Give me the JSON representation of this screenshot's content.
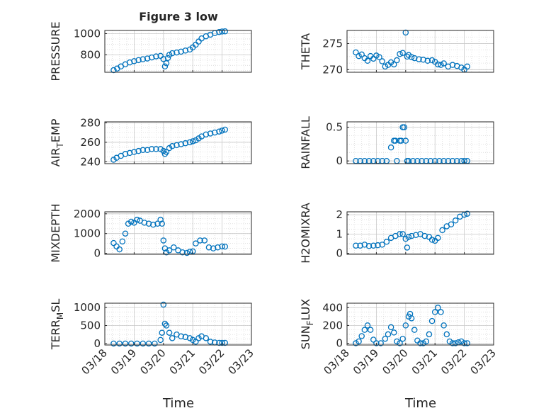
{
  "figure": {
    "title": "Figure 3 low",
    "xlabel": "Time",
    "x_tick_labels": [
      "03/18",
      "03/19",
      "03/20",
      "03/21",
      "03/22",
      "03/23"
    ]
  },
  "colors": {
    "marker": "#0072BD",
    "axis": "#262626",
    "grid": "#d9d9d9"
  },
  "chart_data": [
    {
      "type": "scatter",
      "panel": "PRESSURE",
      "ylabel": "PRESSURE",
      "xlim": [
        "03/18",
        "03/23"
      ],
      "ylim": [
        635,
        1030
      ],
      "yticks": [
        800,
        1000
      ],
      "ytick_labels": [
        "800",
        "1000"
      ],
      "x": [
        0.3,
        0.42,
        0.55,
        0.7,
        0.85,
        1.0,
        1.15,
        1.3,
        1.45,
        1.6,
        1.75,
        1.9,
        2.0,
        2.05,
        2.1,
        2.15,
        2.2,
        2.3,
        2.45,
        2.6,
        2.75,
        2.9,
        3.0,
        3.1,
        3.2,
        3.3,
        3.45,
        3.6,
        3.75,
        3.9,
        4.0,
        4.1
      ],
      "y": [
        655,
        670,
        690,
        710,
        728,
        740,
        750,
        758,
        765,
        775,
        785,
        790,
        760,
        690,
        720,
        770,
        800,
        815,
        822,
        830,
        840,
        850,
        870,
        895,
        925,
        955,
        975,
        990,
        1005,
        1015,
        1020,
        1022
      ]
    },
    {
      "type": "scatter",
      "panel": "THETA",
      "ylabel": "THETA",
      "xlim": [
        "03/18",
        "03/23"
      ],
      "ylim": [
        269.5,
        277.5
      ],
      "yticks": [
        270,
        275
      ],
      "ytick_labels": [
        "270",
        "275"
      ],
      "x": [
        0.3,
        0.4,
        0.5,
        0.6,
        0.7,
        0.8,
        0.9,
        1.0,
        1.1,
        1.2,
        1.3,
        1.4,
        1.5,
        1.6,
        1.7,
        1.8,
        1.9,
        2.0,
        2.05,
        2.1,
        2.2,
        2.3,
        2.45,
        2.6,
        2.75,
        2.9,
        3.0,
        3.1,
        3.2,
        3.3,
        3.45,
        3.6,
        3.75,
        3.9,
        4.0,
        4.1
      ],
      "y": [
        273.3,
        272.6,
        272.9,
        272.2,
        271.7,
        272.6,
        272.1,
        272.7,
        272.4,
        271.6,
        270.6,
        270.9,
        271.4,
        271.0,
        271.8,
        273.0,
        273.2,
        277.1,
        272.5,
        272.8,
        272.4,
        272.2,
        272.0,
        271.9,
        271.7,
        271.8,
        271.5,
        271.0,
        270.9,
        271.2,
        270.6,
        270.9,
        270.7,
        270.4,
        270.0,
        270.6
      ]
    },
    {
      "type": "scatter",
      "panel": "AIR_TEMP",
      "ylabel": "AIR_TEMP",
      "xlim": [
        "03/18",
        "03/23"
      ],
      "ylim": [
        238,
        281
      ],
      "yticks": [
        240,
        260,
        280
      ],
      "ytick_labels": [
        "240",
        "260",
        "280"
      ],
      "x": [
        0.3,
        0.4,
        0.55,
        0.7,
        0.85,
        1.0,
        1.15,
        1.3,
        1.45,
        1.6,
        1.75,
        1.9,
        2.0,
        2.05,
        2.1,
        2.2,
        2.3,
        2.45,
        2.6,
        2.75,
        2.9,
        3.0,
        3.1,
        3.2,
        3.3,
        3.45,
        3.6,
        3.75,
        3.9,
        4.0,
        4.1
      ],
      "y": [
        242,
        244,
        246,
        248,
        249,
        250,
        251,
        252,
        252,
        253,
        253,
        253,
        251,
        248,
        250,
        254,
        256,
        257,
        258,
        259,
        260,
        261,
        262,
        264,
        266,
        268,
        269,
        270,
        271,
        272,
        273
      ]
    },
    {
      "type": "scatter",
      "panel": "RAINFALL",
      "ylabel": "RAINFALL",
      "xlim": [
        "03/18",
        "03/23"
      ],
      "ylim": [
        -0.04,
        0.58
      ],
      "yticks": [
        0,
        0.5
      ],
      "ytick_labels": [
        "0",
        "0.5"
      ],
      "x": [
        0.3,
        0.45,
        0.6,
        0.75,
        0.9,
        1.05,
        1.2,
        1.35,
        1.5,
        1.6,
        1.65,
        1.7,
        1.8,
        1.85,
        1.9,
        1.95,
        2.0,
        2.05,
        2.1,
        2.25,
        2.4,
        2.55,
        2.7,
        2.85,
        3.0,
        3.15,
        3.3,
        3.45,
        3.6,
        3.75,
        3.9,
        4.0,
        4.1
      ],
      "y": [
        0,
        0,
        0,
        0,
        0,
        0,
        0,
        0,
        0.2,
        0.3,
        0.3,
        0,
        0.3,
        0.3,
        0.5,
        0.5,
        0.3,
        0,
        0,
        0,
        0,
        0,
        0,
        0,
        0,
        0,
        0,
        0,
        0,
        0,
        0,
        0,
        0
      ]
    },
    {
      "type": "scatter",
      "panel": "MIXDEPTH",
      "ylabel": "MIXDEPTH",
      "xlim": [
        "03/18",
        "03/23"
      ],
      "ylim": [
        -50,
        2100
      ],
      "yticks": [
        0,
        1000,
        2000
      ],
      "ytick_labels": [
        "0",
        "1000",
        "2000"
      ],
      "x": [
        0.3,
        0.4,
        0.5,
        0.6,
        0.7,
        0.8,
        0.9,
        1.0,
        1.1,
        1.2,
        1.35,
        1.5,
        1.65,
        1.8,
        1.9,
        1.95,
        2.0,
        2.05,
        2.1,
        2.2,
        2.35,
        2.5,
        2.65,
        2.8,
        2.9,
        3.0,
        3.1,
        3.25,
        3.4,
        3.55,
        3.7,
        3.85,
        4.0,
        4.1
      ],
      "y": [
        520,
        350,
        200,
        600,
        1000,
        1500,
        1600,
        1550,
        1700,
        1650,
        1550,
        1500,
        1450,
        1500,
        1700,
        1500,
        650,
        250,
        50,
        150,
        300,
        150,
        50,
        20,
        80,
        100,
        500,
        650,
        650,
        300,
        250,
        300,
        350,
        340
      ]
    },
    {
      "type": "scatter",
      "panel": "H2OMIXRA",
      "ylabel": "H2OMIXRA",
      "xlim": [
        "03/18",
        "03/23"
      ],
      "ylim": [
        -0.05,
        2.15
      ],
      "yticks": [
        0,
        1,
        2
      ],
      "ytick_labels": [
        "0",
        "1",
        "2"
      ],
      "x": [
        0.3,
        0.45,
        0.6,
        0.75,
        0.9,
        1.05,
        1.2,
        1.35,
        1.5,
        1.65,
        1.8,
        1.9,
        2.0,
        2.05,
        2.1,
        2.2,
        2.35,
        2.5,
        2.65,
        2.8,
        2.9,
        3.0,
        3.1,
        3.25,
        3.4,
        3.55,
        3.7,
        3.85,
        4.0,
        4.1
      ],
      "y": [
        0.4,
        0.4,
        0.45,
        0.38,
        0.4,
        0.42,
        0.45,
        0.6,
        0.8,
        0.9,
        1.0,
        1.0,
        0.75,
        0.3,
        0.85,
        0.9,
        0.95,
        1.0,
        0.9,
        0.85,
        0.7,
        0.65,
        0.8,
        1.2,
        1.4,
        1.5,
        1.7,
        1.9,
        2.0,
        2.05
      ]
    },
    {
      "type": "scatter",
      "panel": "TERR_MSL",
      "ylabel": "TERR_MSL",
      "xlim": [
        "03/18",
        "03/23"
      ],
      "ylim": [
        -40,
        1120
      ],
      "yticks": [
        0,
        500,
        1000
      ],
      "ytick_labels": [
        "0",
        "500",
        "1000"
      ],
      "x": [
        0.3,
        0.5,
        0.7,
        0.9,
        1.1,
        1.3,
        1.5,
        1.7,
        1.9,
        1.95,
        2.0,
        2.05,
        2.1,
        2.2,
        2.3,
        2.45,
        2.6,
        2.75,
        2.9,
        3.0,
        3.1,
        3.2,
        3.3,
        3.45,
        3.6,
        3.75,
        3.9,
        4.0,
        4.1
      ],
      "y": [
        0,
        0,
        0,
        0,
        0,
        0,
        0,
        0,
        100,
        300,
        1080,
        550,
        500,
        300,
        150,
        250,
        200,
        180,
        150,
        100,
        50,
        150,
        200,
        150,
        50,
        30,
        20,
        20,
        20
      ]
    },
    {
      "type": "scatter",
      "panel": "SUN_FLUX",
      "ylabel": "SUN_FLUX",
      "xlim": [
        "03/18",
        "03/23"
      ],
      "ylim": [
        -20,
        450
      ],
      "yticks": [
        0,
        200,
        400
      ],
      "ytick_labels": [
        "0",
        "200",
        "400"
      ],
      "x": [
        0.3,
        0.4,
        0.5,
        0.6,
        0.7,
        0.8,
        0.9,
        1.0,
        1.15,
        1.3,
        1.4,
        1.5,
        1.6,
        1.7,
        1.8,
        1.9,
        2.0,
        2.1,
        2.15,
        2.2,
        2.3,
        2.4,
        2.5,
        2.6,
        2.7,
        2.8,
        2.9,
        3.0,
        3.1,
        3.2,
        3.3,
        3.4,
        3.5,
        3.6,
        3.7,
        3.8,
        3.9,
        4.0,
        4.1
      ],
      "y": [
        0,
        20,
        80,
        150,
        200,
        150,
        40,
        0,
        0,
        50,
        100,
        180,
        120,
        20,
        0,
        50,
        200,
        300,
        330,
        280,
        150,
        30,
        0,
        0,
        20,
        100,
        250,
        350,
        400,
        350,
        200,
        100,
        20,
        0,
        0,
        10,
        20,
        0,
        0
      ]
    }
  ]
}
